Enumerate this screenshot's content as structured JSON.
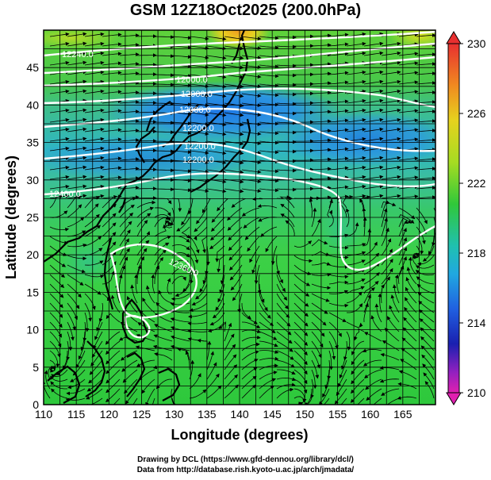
{
  "title": "GSM 12Z18Oct2025 (200.0hPa)",
  "map": {
    "xlabel": "Longitude (degrees)",
    "ylabel": "Latitude  (degrees)",
    "xticks": [
      110,
      115,
      120,
      125,
      130,
      135,
      140,
      145,
      150,
      155,
      160,
      165
    ],
    "yticks": [
      0,
      5,
      10,
      15,
      20,
      25,
      30,
      35,
      40,
      45
    ],
    "lon_range": [
      110,
      170
    ],
    "lat_range": [
      0,
      50
    ],
    "field": "temperature (K) shaded, geopotential height contours, streamlines",
    "grid": true
  },
  "colorbar": {
    "ticks": [
      "230",
      "226",
      "222",
      "218",
      "214",
      "210"
    ],
    "range": [
      210,
      230
    ]
  },
  "contour_labels": [
    "12240.0",
    "12000.0",
    "12000.0",
    "12000.0",
    "12200.0",
    "12200.0",
    "12200.0",
    "12400.0",
    "12360.0"
  ],
  "credits": {
    "line1": "Drawing by DCL (https://www.gfd-dennou.org/library/dcl/)",
    "line2": "Data from http://database.rish.kyoto-u.ac.jp/arch/jmadata/"
  }
}
